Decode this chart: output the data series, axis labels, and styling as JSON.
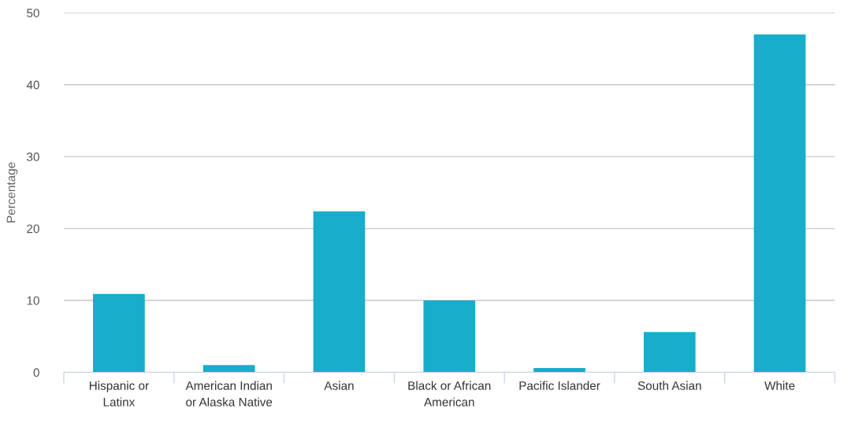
{
  "chart_data": {
    "type": "bar",
    "ylabel": "Percentage",
    "categories": [
      "Hispanic or\nLatinx",
      "American Indian\nor Alaska Native",
      "Asian",
      "Black or African\nAmerican",
      "Pacific Islander",
      "South Asian",
      "White"
    ],
    "values": [
      10.9,
      1.0,
      22.4,
      10.0,
      0.6,
      5.6,
      47.0
    ],
    "color": "#17adcb",
    "ylim": [
      0,
      50
    ],
    "yticks": [
      0,
      10,
      20,
      30,
      40,
      50
    ],
    "grid": "y"
  }
}
